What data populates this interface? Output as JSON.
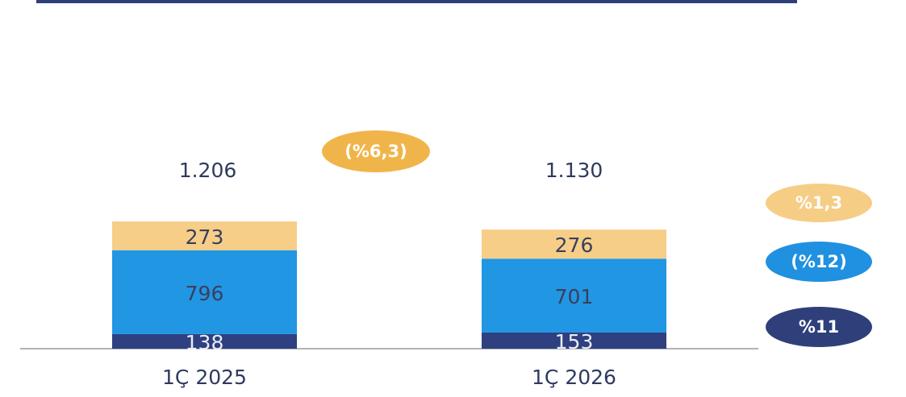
{
  "chart_data": {
    "type": "bar",
    "stacked": true,
    "categories": [
      "1Ç 2025",
      "1Ç 2026"
    ],
    "series": [
      {
        "color": "#2e4080",
        "label_color": "#e8ecf5",
        "values": [
          138,
          153
        ]
      },
      {
        "color": "#2196e3",
        "label_color": "#3a3f5c",
        "values": [
          796,
          701
        ]
      },
      {
        "color": "#f6ce88",
        "label_color": "#3a3f5c",
        "values": [
          273,
          276
        ]
      }
    ],
    "totals": {
      "values": [
        1206,
        1130
      ],
      "value_labels": [
        "1.206",
        "1.130"
      ]
    },
    "annotations": [
      {
        "text": "(%6,3)",
        "color": "#f0b54a"
      },
      {
        "text": "%1,3",
        "color": "#f6cd85"
      },
      {
        "text": "(%12)",
        "color": "#1f91e0"
      },
      {
        "text": "%11",
        "color": "#2e3f7a"
      }
    ]
  }
}
